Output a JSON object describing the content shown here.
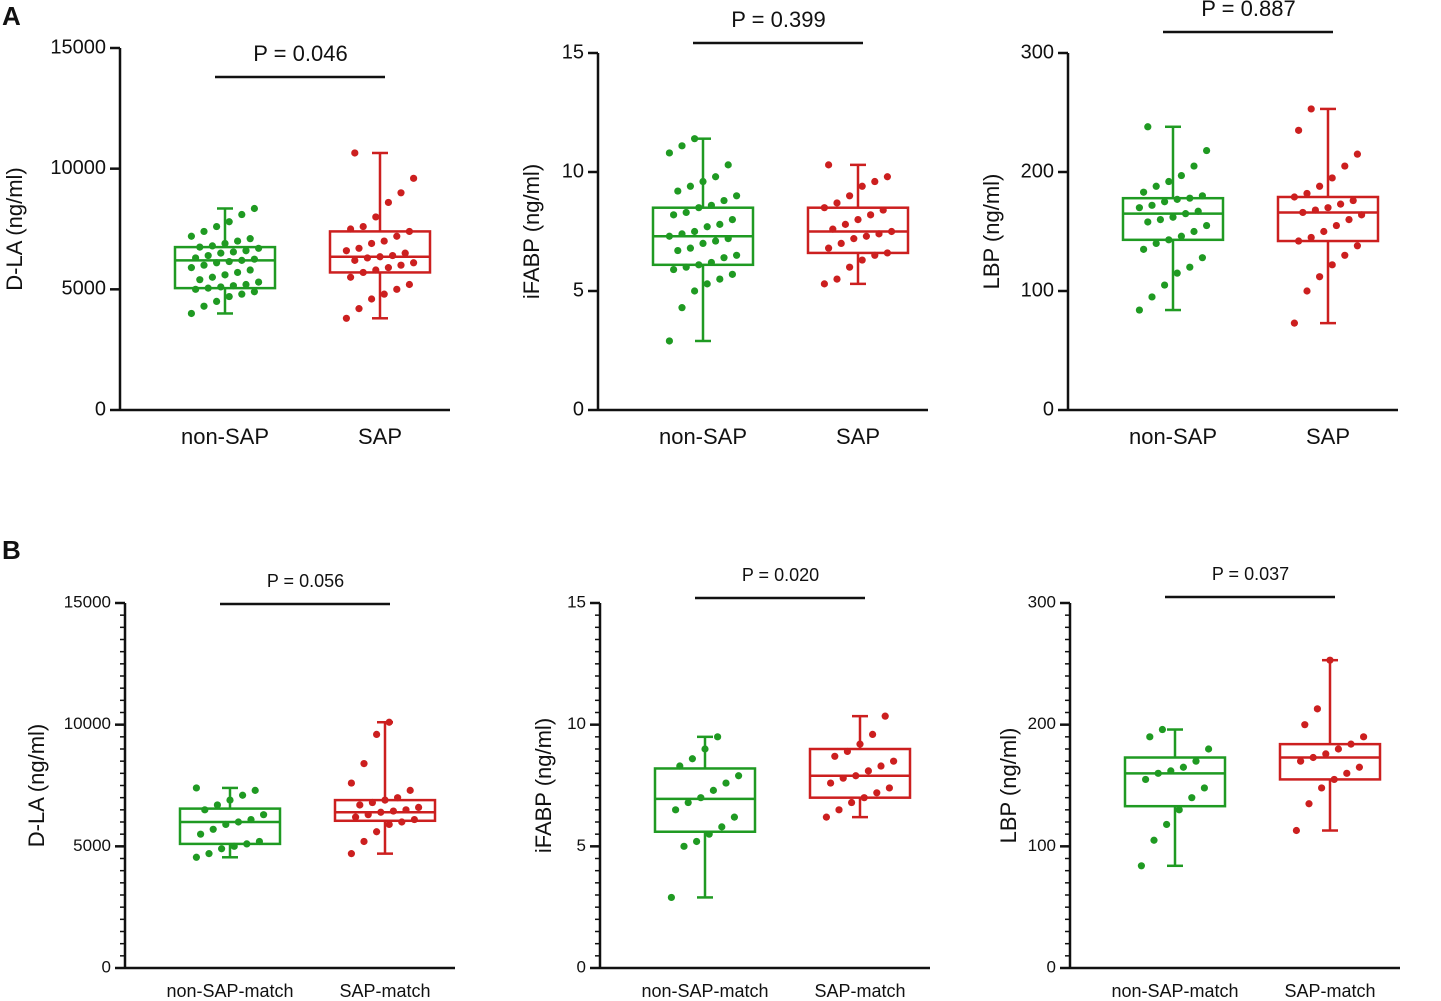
{
  "panel_labels": [
    "A",
    "B"
  ],
  "chart_data": [
    {
      "type": "box",
      "y_label": "D-LA (ng/ml)",
      "annotation": "P = 0.046",
      "categories": [
        "non-SAP",
        "SAP"
      ],
      "ylim": [
        0,
        15000
      ],
      "yticks": [
        0,
        5000,
        10000,
        15000
      ],
      "boxes": [
        {
          "color": "#1f9a22",
          "min": 4000,
          "q1": 5050,
          "median": 6200,
          "q3": 6750,
          "max": 8350,
          "points": [
            4000,
            4300,
            4500,
            4700,
            4800,
            4900,
            5000,
            5050,
            5100,
            5150,
            5200,
            5300,
            5400,
            5500,
            5600,
            5700,
            5800,
            5900,
            6000,
            6100,
            6150,
            6200,
            6250,
            6300,
            6400,
            6500,
            6550,
            6600,
            6700,
            6750,
            6800,
            6900,
            7000,
            7100,
            7200,
            7400,
            7600,
            7800,
            8100,
            8350
          ]
        },
        {
          "color": "#cc1f1f",
          "min": 3800,
          "q1": 5700,
          "median": 6350,
          "q3": 7400,
          "max": 10650,
          "points": [
            3800,
            4200,
            4600,
            4800,
            5000,
            5200,
            5500,
            5700,
            5800,
            5900,
            6000,
            6100,
            6200,
            6300,
            6350,
            6400,
            6500,
            6600,
            6700,
            6900,
            7000,
            7200,
            7400,
            7500,
            7600,
            8000,
            8600,
            9000,
            9600,
            10650
          ]
        }
      ]
    },
    {
      "type": "box",
      "y_label": "iFABP (ng/ml)",
      "annotation": "P = 0.399",
      "categories": [
        "non-SAP",
        "SAP"
      ],
      "ylim": [
        0,
        15
      ],
      "yticks": [
        0,
        5,
        10,
        15
      ],
      "boxes": [
        {
          "color": "#1f9a22",
          "min": 2.9,
          "q1": 6.1,
          "median": 7.3,
          "q3": 8.5,
          "max": 11.4,
          "points": [
            2.9,
            4.3,
            5.0,
            5.3,
            5.5,
            5.7,
            5.9,
            6.0,
            6.1,
            6.2,
            6.4,
            6.5,
            6.7,
            6.8,
            7.0,
            7.1,
            7.2,
            7.3,
            7.4,
            7.5,
            7.7,
            7.8,
            8.0,
            8.2,
            8.3,
            8.5,
            8.6,
            8.8,
            9.0,
            9.2,
            9.4,
            9.6,
            9.8,
            10.3,
            10.8,
            11.1,
            11.4
          ]
        },
        {
          "color": "#cc1f1f",
          "min": 5.3,
          "q1": 6.6,
          "median": 7.5,
          "q3": 8.5,
          "max": 10.3,
          "points": [
            5.3,
            5.5,
            6.0,
            6.3,
            6.5,
            6.6,
            6.8,
            7.0,
            7.2,
            7.3,
            7.4,
            7.5,
            7.6,
            7.8,
            8.0,
            8.2,
            8.4,
            8.5,
            8.7,
            9.0,
            9.4,
            9.6,
            9.8,
            10.3
          ]
        }
      ]
    },
    {
      "type": "box",
      "y_label": "LBP (ng/ml)",
      "annotation": "P = 0.887",
      "categories": [
        "non-SAP",
        "SAP"
      ],
      "ylim": [
        0,
        300
      ],
      "yticks": [
        0,
        100,
        200,
        300
      ],
      "boxes": [
        {
          "color": "#1f9a22",
          "min": 84,
          "q1": 143,
          "median": 165,
          "q3": 178,
          "max": 238,
          "points": [
            84,
            95,
            105,
            115,
            120,
            128,
            135,
            140,
            143,
            146,
            150,
            155,
            158,
            160,
            162,
            165,
            167,
            170,
            172,
            175,
            177,
            178,
            180,
            183,
            188,
            192,
            197,
            205,
            218,
            238
          ]
        },
        {
          "color": "#cc1f1f",
          "min": 73,
          "q1": 142,
          "median": 166,
          "q3": 179,
          "max": 253,
          "points": [
            73,
            100,
            112,
            122,
            130,
            138,
            142,
            145,
            150,
            155,
            160,
            164,
            166,
            168,
            170,
            173,
            176,
            179,
            182,
            188,
            195,
            205,
            215,
            235,
            253
          ]
        }
      ]
    },
    {
      "type": "box",
      "y_label": "D-LA (ng/ml)",
      "annotation": "P = 0.056",
      "categories": [
        "non-SAP-match",
        "SAP-match"
      ],
      "ylim": [
        0,
        15000
      ],
      "yticks": [
        0,
        5000,
        10000,
        15000
      ],
      "minor_ticks_per_interval": 10,
      "boxes": [
        {
          "color": "#1f9a22",
          "min": 4550,
          "q1": 5100,
          "median": 6000,
          "q3": 6550,
          "max": 7400,
          "points": [
            4550,
            4700,
            4900,
            5000,
            5100,
            5200,
            5500,
            5700,
            5900,
            6000,
            6100,
            6300,
            6500,
            6700,
            6900,
            7100,
            7300,
            7400
          ]
        },
        {
          "color": "#cc1f1f",
          "min": 4700,
          "q1": 6050,
          "median": 6400,
          "q3": 6900,
          "max": 10100,
          "points": [
            4700,
            5200,
            5600,
            5900,
            6000,
            6100,
            6200,
            6300,
            6400,
            6450,
            6500,
            6600,
            6700,
            6800,
            6900,
            7000,
            7300,
            7600,
            8400,
            9600,
            10100
          ]
        }
      ]
    },
    {
      "type": "box",
      "y_label": "iFABP (ng/ml)",
      "annotation": "P = 0.020",
      "categories": [
        "non-SAP-match",
        "SAP-match"
      ],
      "ylim": [
        0,
        15
      ],
      "yticks": [
        0,
        5,
        10,
        15
      ],
      "minor_ticks_per_interval": 10,
      "boxes": [
        {
          "color": "#1f9a22",
          "min": 2.9,
          "q1": 5.6,
          "median": 6.95,
          "q3": 8.2,
          "max": 9.5,
          "points": [
            2.9,
            5.0,
            5.2,
            5.5,
            5.8,
            6.2,
            6.5,
            6.8,
            7.0,
            7.3,
            7.6,
            7.9,
            8.3,
            8.6,
            9.0,
            9.5
          ]
        },
        {
          "color": "#cc1f1f",
          "min": 6.2,
          "q1": 7.0,
          "median": 7.9,
          "q3": 9.0,
          "max": 10.35,
          "points": [
            6.2,
            6.5,
            6.8,
            7.0,
            7.2,
            7.4,
            7.6,
            7.8,
            7.9,
            8.1,
            8.3,
            8.5,
            8.7,
            8.9,
            9.2,
            9.6,
            10.35
          ]
        }
      ]
    },
    {
      "type": "box",
      "y_label": "LBP (ng/ml)",
      "annotation": "P = 0.037",
      "categories": [
        "non-SAP-match",
        "SAP-match"
      ],
      "ylim": [
        0,
        300
      ],
      "yticks": [
        0,
        100,
        200,
        300
      ],
      "minor_ticks_per_interval": 10,
      "boxes": [
        {
          "color": "#1f9a22",
          "min": 84,
          "q1": 133,
          "median": 160,
          "q3": 173,
          "max": 196,
          "points": [
            84,
            105,
            118,
            130,
            140,
            148,
            155,
            160,
            162,
            165,
            170,
            180,
            190,
            196
          ]
        },
        {
          "color": "#cc1f1f",
          "min": 113,
          "q1": 155,
          "median": 173,
          "q3": 184,
          "max": 253,
          "points": [
            113,
            135,
            148,
            155,
            160,
            165,
            170,
            173,
            176,
            180,
            184,
            190,
            200,
            213,
            253
          ]
        }
      ]
    }
  ]
}
